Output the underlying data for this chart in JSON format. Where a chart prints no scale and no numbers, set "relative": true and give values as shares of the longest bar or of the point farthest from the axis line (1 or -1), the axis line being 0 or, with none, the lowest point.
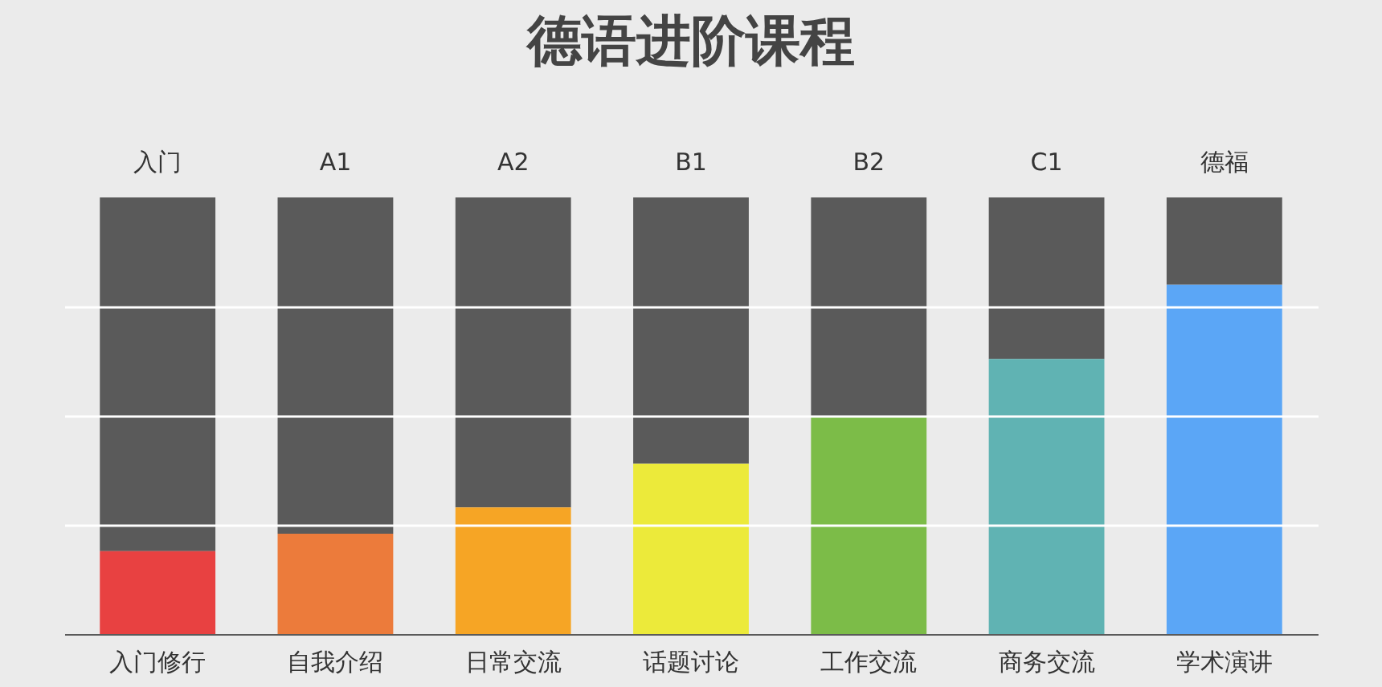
{
  "chart_data": {
    "type": "bar",
    "title": "德语进阶课程",
    "relative": true,
    "stacked": true,
    "grid": true,
    "categories": [
      "入门修行",
      "自我介绍",
      "日常交流",
      "话题讨论",
      "工作交流",
      "商务交流",
      "学术演讲"
    ],
    "series": [
      {
        "colors": [
          "#e84141",
          "#ec7b3b",
          "#f6a525",
          "#ecea3a",
          "#7cbc48",
          "#60b3b3",
          "#5ba6f6"
        ],
        "values": [
          0.19,
          0.23,
          0.29,
          0.39,
          0.5,
          0.63,
          0.8
        ]
      },
      {
        "color": "#5a5a5a",
        "values": [
          0.81,
          0.77,
          0.71,
          0.61,
          0.5,
          0.37,
          0.2
        ]
      }
    ],
    "annotations": [
      "入门",
      "A1",
      "A2",
      "B1",
      "B2",
      "C1",
      "德福"
    ]
  }
}
